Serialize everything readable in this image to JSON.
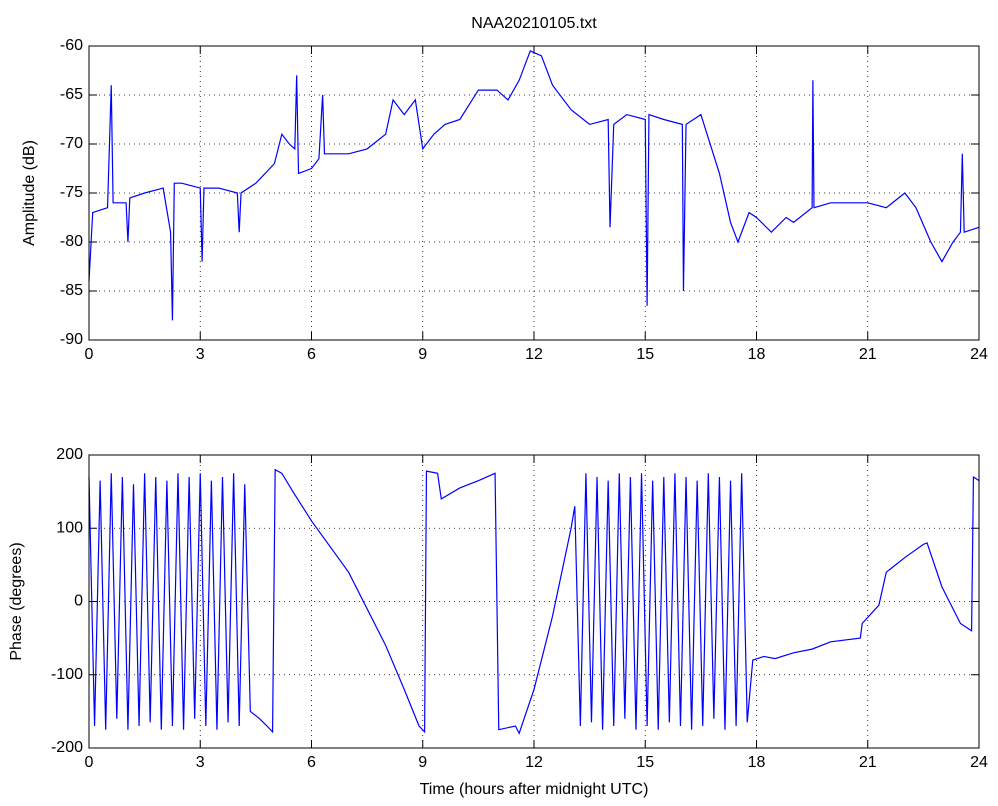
{
  "chart_data": [
    {
      "type": "line",
      "title": "NAA20210105.txt",
      "ylabel": "Amplitude (dB)",
      "color": "#0000ff",
      "grid": true,
      "xlim": [
        0,
        24
      ],
      "xticks": [
        0,
        3,
        6,
        9,
        12,
        15,
        18,
        21,
        24
      ],
      "ylim": [
        -90,
        -60
      ],
      "yticks": [
        -90,
        -85,
        -80,
        -75,
        -70,
        -65,
        -60
      ],
      "x": [
        0,
        0.1,
        0.5,
        0.6,
        0.65,
        1,
        1.05,
        1.1,
        1.5,
        2,
        2.2,
        2.25,
        2.3,
        2.5,
        3,
        3.05,
        3.1,
        3.5,
        4,
        4.05,
        4.1,
        4.5,
        5,
        5.2,
        5.4,
        5.55,
        5.6,
        5.65,
        6,
        6.2,
        6.3,
        6.35,
        7,
        7.5,
        8,
        8.2,
        8.5,
        8.8,
        9,
        9.3,
        9.6,
        10,
        10.5,
        11,
        11.3,
        11.6,
        11.9,
        12.2,
        12.5,
        13,
        13.5,
        14,
        14.05,
        14.15,
        14.5,
        15,
        15.05,
        15.1,
        15.5,
        16,
        16.03,
        16.1,
        16.5,
        17,
        17.3,
        17.5,
        17.8,
        18,
        18.4,
        18.8,
        19,
        19.5,
        19.52,
        19.55,
        20,
        21,
        21.5,
        22,
        22.3,
        22.7,
        23,
        23.3,
        23.5,
        23.55,
        23.6,
        24
      ],
      "values": [
        -84,
        -77,
        -76.5,
        -64,
        -76,
        -76,
        -80,
        -75.5,
        -75,
        -74.5,
        -79,
        -88,
        -74,
        -74,
        -74.5,
        -82,
        -74.5,
        -74.5,
        -75,
        -79,
        -75,
        -74,
        -72,
        -69,
        -70,
        -70.5,
        -63,
        -73,
        -72.5,
        -71.5,
        -65,
        -71,
        -71,
        -70.5,
        -69,
        -65.5,
        -67,
        -65.5,
        -70.5,
        -69,
        -68,
        -67.5,
        -64.5,
        -64.5,
        -65.5,
        -63.5,
        -60.5,
        -61,
        -64,
        -66.5,
        -68,
        -67.5,
        -78.5,
        -68,
        -67,
        -67.5,
        -86.5,
        -67,
        -67.5,
        -68,
        -85,
        -68,
        -67,
        -73,
        -78,
        -80,
        -77,
        -77.5,
        -79,
        -77.5,
        -78,
        -76.5,
        -63.5,
        -76.5,
        -76,
        -76,
        -76.5,
        -75,
        -76.5,
        -80,
        -82,
        -80,
        -79,
        -71,
        -79,
        -78.5
      ]
    },
    {
      "type": "line",
      "xlabel": "Time (hours after midnight UTC)",
      "ylabel": "Phase (degrees)",
      "color": "#0000ff",
      "grid": true,
      "xlim": [
        0,
        24
      ],
      "xticks": [
        0,
        3,
        6,
        9,
        12,
        15,
        18,
        21,
        24
      ],
      "ylim": [
        -200,
        200
      ],
      "yticks": [
        -200,
        -100,
        0,
        100,
        200
      ],
      "x": [
        0,
        0.15,
        0.3,
        0.45,
        0.6,
        0.75,
        0.9,
        1.05,
        1.2,
        1.35,
        1.5,
        1.65,
        1.8,
        1.95,
        2.1,
        2.25,
        2.4,
        2.55,
        2.7,
        2.85,
        3,
        3.15,
        3.3,
        3.45,
        3.6,
        3.75,
        3.9,
        4.05,
        4.2,
        4.35,
        4.6,
        4.8,
        4.95,
        5.02,
        5.2,
        5.5,
        6,
        7,
        8,
        8.5,
        8.9,
        9.05,
        9.1,
        9.4,
        9.5,
        10,
        10.5,
        10.95,
        11.05,
        11.5,
        11.6,
        12,
        12.5,
        13,
        13.1,
        13.25,
        13.4,
        13.55,
        13.7,
        13.85,
        14,
        14.15,
        14.3,
        14.45,
        14.6,
        14.75,
        14.9,
        15.05,
        15.2,
        15.35,
        15.5,
        15.65,
        15.8,
        15.95,
        16.1,
        16.25,
        16.4,
        16.55,
        16.7,
        16.85,
        17,
        17.15,
        17.3,
        17.45,
        17.6,
        17.75,
        17.9,
        18.2,
        18.5,
        19,
        19.5,
        20,
        20.8,
        20.85,
        21.3,
        21.5,
        22,
        22.5,
        22.6,
        23,
        23.5,
        23.8,
        23.85,
        24
      ],
      "values": [
        170,
        -170,
        165,
        -175,
        175,
        -160,
        170,
        -175,
        160,
        -170,
        175,
        -165,
        170,
        -175,
        165,
        -170,
        175,
        -175,
        170,
        -160,
        175,
        -170,
        165,
        -175,
        170,
        -165,
        175,
        -170,
        160,
        -150,
        -160,
        -170,
        -178,
        180,
        175,
        150,
        110,
        40,
        -60,
        -120,
        -170,
        -178,
        178,
        175,
        140,
        155,
        165,
        175,
        -175,
        -170,
        -180,
        -120,
        -20,
        100,
        130,
        -170,
        175,
        -165,
        170,
        -175,
        165,
        -170,
        175,
        -160,
        170,
        -175,
        175,
        -170,
        165,
        -175,
        170,
        -165,
        175,
        -170,
        170,
        -175,
        165,
        -170,
        175,
        -160,
        170,
        -175,
        165,
        -170,
        175,
        -165,
        -80,
        -75,
        -78,
        -70,
        -65,
        -55,
        -50,
        -30,
        -5,
        40,
        60,
        78,
        80,
        20,
        -30,
        -40,
        170,
        165
      ]
    }
  ]
}
